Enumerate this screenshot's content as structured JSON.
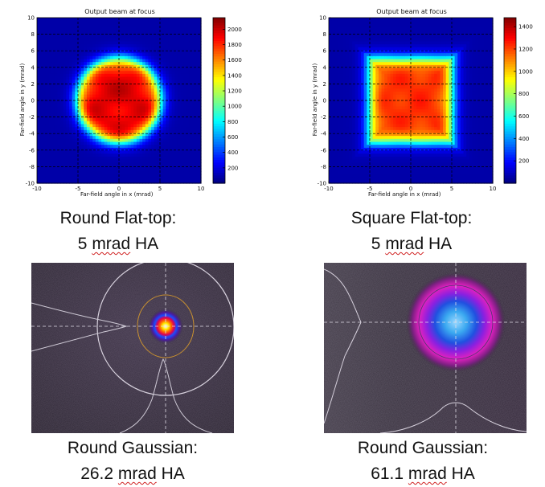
{
  "colors": {
    "jet_low": "#00008f",
    "jet_high": "#800000",
    "beam_bg": "#2b2432",
    "ring": "#d9d4de",
    "ellipse": "#c89030"
  },
  "captions": {
    "round_flat_top": {
      "line1": "Round Flat-top:",
      "value": "5",
      "unit": "mrad",
      "suffix": "HA"
    },
    "square_flat_top": {
      "line1": "Square Flat-top:",
      "value": "5",
      "unit": "mrad",
      "suffix": "HA"
    },
    "round_gaussian_1": {
      "line1": "Round Gaussian:",
      "value": "26.2",
      "unit": "mrad",
      "suffix": "HA"
    },
    "round_gaussian_2": {
      "line1": "Round Gaussian:",
      "value": "61.1",
      "unit": "mrad",
      "suffix": "HA"
    }
  },
  "chart_data": [
    {
      "type": "heatmap",
      "title": "Output beam at focus",
      "xlabel": "Far-field angle in x (mrad)",
      "ylabel": "Far-field angle in y (mrad)",
      "xlim": [
        -10,
        10
      ],
      "ylim": [
        -10,
        10
      ],
      "x_ticks": [
        -10,
        -5,
        0,
        5,
        10
      ],
      "y_ticks": [
        10,
        8,
        6,
        4,
        2,
        0,
        -2,
        -4,
        -6,
        -8,
        -10
      ],
      "grid": true,
      "profile": "round-flat-top",
      "half_angle_mrad": 5,
      "colorbar": {
        "min": 0,
        "max": 2150,
        "ticks": [
          200,
          400,
          600,
          800,
          1000,
          1200,
          1400,
          1600,
          1800,
          2000
        ]
      }
    },
    {
      "type": "heatmap",
      "title": "Output beam at focus",
      "xlabel": "Far-field angle in x (mrad)",
      "ylabel": "Far-field angle in y (mrad)",
      "xlim": [
        -10,
        10
      ],
      "ylim": [
        -10,
        10
      ],
      "x_ticks": [
        -10,
        -5,
        0,
        5,
        10
      ],
      "y_ticks": [
        10,
        8,
        6,
        4,
        2,
        0,
        -2,
        -4,
        -6,
        -8,
        -10
      ],
      "grid": true,
      "profile": "square-flat-top",
      "half_angle_mrad": 5,
      "colorbar": {
        "min": 0,
        "max": 1480,
        "ticks": [
          200,
          400,
          600,
          800,
          1000,
          1200,
          1400
        ]
      }
    }
  ]
}
